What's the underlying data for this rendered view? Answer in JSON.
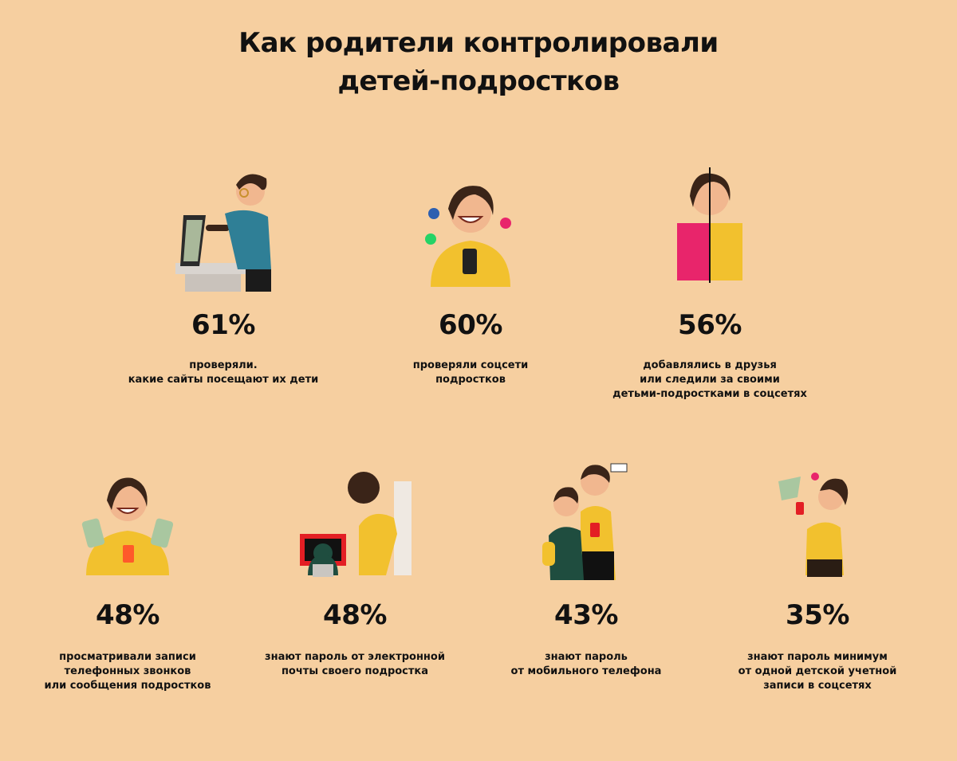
{
  "title": {
    "line1": "Как родители контролировали",
    "line2": "детей-подростков"
  },
  "stats": [
    {
      "value": "61%",
      "lines": [
        "проверяли.",
        "какие сайты посещают их дети"
      ],
      "icon": "person-at-computer-icon"
    },
    {
      "value": "60%",
      "lines": [
        "проверяли соцсети",
        "подростков"
      ],
      "icon": "woman-with-phone-social-icon"
    },
    {
      "value": "56%",
      "lines": [
        "добавлялись в друзья",
        "или следили за своими",
        "детьми-подростками в соцсетях"
      ],
      "icon": "split-face-woman-icon"
    },
    {
      "value": "48%",
      "lines": [
        "просматривали записи",
        "телефонных звонков",
        "или сообщения подростков"
      ],
      "icon": "woman-with-phones-icon"
    },
    {
      "value": "48%",
      "lines": [
        "знают пароль от электронной",
        "почты своего подростка"
      ],
      "icon": "parent-watching-laptop-icon"
    },
    {
      "value": "43%",
      "lines": [
        "знают пароль",
        "от мобильного телефона"
      ],
      "icon": "parent-and-teen-phone-icon"
    },
    {
      "value": "35%",
      "lines": [
        "знают пароль минимум",
        "от одной детской учетной",
        "записи в соцсетях"
      ],
      "icon": "person-photographing-icon"
    }
  ],
  "colors": {
    "background": "#f6cfa0",
    "yellow": "#f2c12e",
    "teal": "#2f7f96",
    "pink": "#e8256b",
    "green": "#1f4d3f",
    "red": "#e31e24",
    "hair": "#3a2418"
  }
}
